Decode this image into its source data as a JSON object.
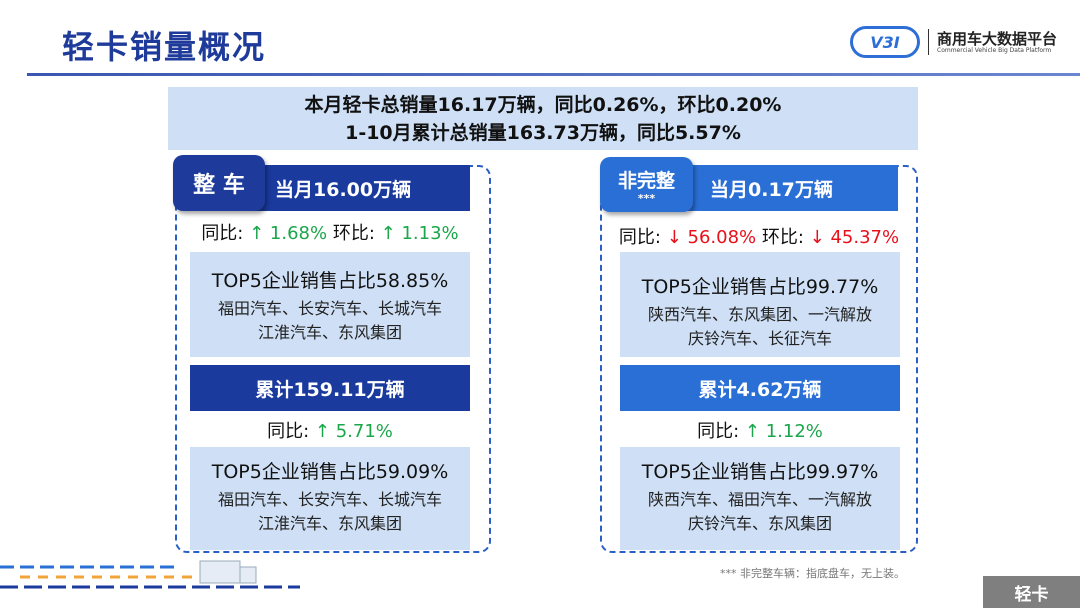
{
  "title": "轻卡销量概况",
  "logo": {
    "name": "商用车大数据平台",
    "subtitle": "Commercial Vehicle Big Data Platform",
    "mark": "V3I"
  },
  "summary": {
    "line1": "本月轻卡总销量16.17万辆，同比0.26%，环比0.20%",
    "line2": "1-10月累计总销量163.73万辆，同比5.57%"
  },
  "complete": {
    "tab": "整 车",
    "month": "当月16.00万辆",
    "yoy_label": "同比:",
    "yoy": "↑ 1.68%",
    "mom_label": "环比:",
    "mom": "↑ 1.13%",
    "top5_month": {
      "title": "TOP5企业销售占比58.85%",
      "line1": "福田汽车、长安汽车、长城汽车",
      "line2": "江淮汽车、东风集团"
    },
    "cumulative": "累计159.11万辆",
    "cum_yoy_label": "同比:",
    "cum_yoy": "↑ 5.71%",
    "top5_cum": {
      "title": "TOP5企业销售占比59.09%",
      "line1": "福田汽车、长安汽车、长城汽车",
      "line2": "江淮汽车、东风集团"
    }
  },
  "incomplete": {
    "tab": "非完整",
    "tab_mark": "***",
    "month": "当月0.17万辆",
    "yoy_label": "同比:",
    "yoy": "↓ 56.08%",
    "mom_label": "环比:",
    "mom": "↓ 45.37%",
    "top5_month": {
      "title": "TOP5企业销售占比99.77%",
      "line1": "陕西汽车、东风集团、一汽解放",
      "line2": "庆铃汽车、长征汽车"
    },
    "cumulative": "累计4.62万辆",
    "cum_yoy_label": "同比:",
    "cum_yoy": "↑ 1.12%",
    "top5_cum": {
      "title": "TOP5企业销售占比99.97%",
      "line1": "陕西汽车、福田汽车、一汽解放",
      "line2": "庆铃汽车、东风集团"
    }
  },
  "note": "*** 非完整车辆：指底盘车，无上装。",
  "badge": "轻卡",
  "colors": {
    "dark_blue": "#1a3a9e",
    "mid_blue": "#2a6fd6",
    "light_fill": "#cfe0f6",
    "up": "#1aa64a",
    "down": "#e8101a"
  }
}
